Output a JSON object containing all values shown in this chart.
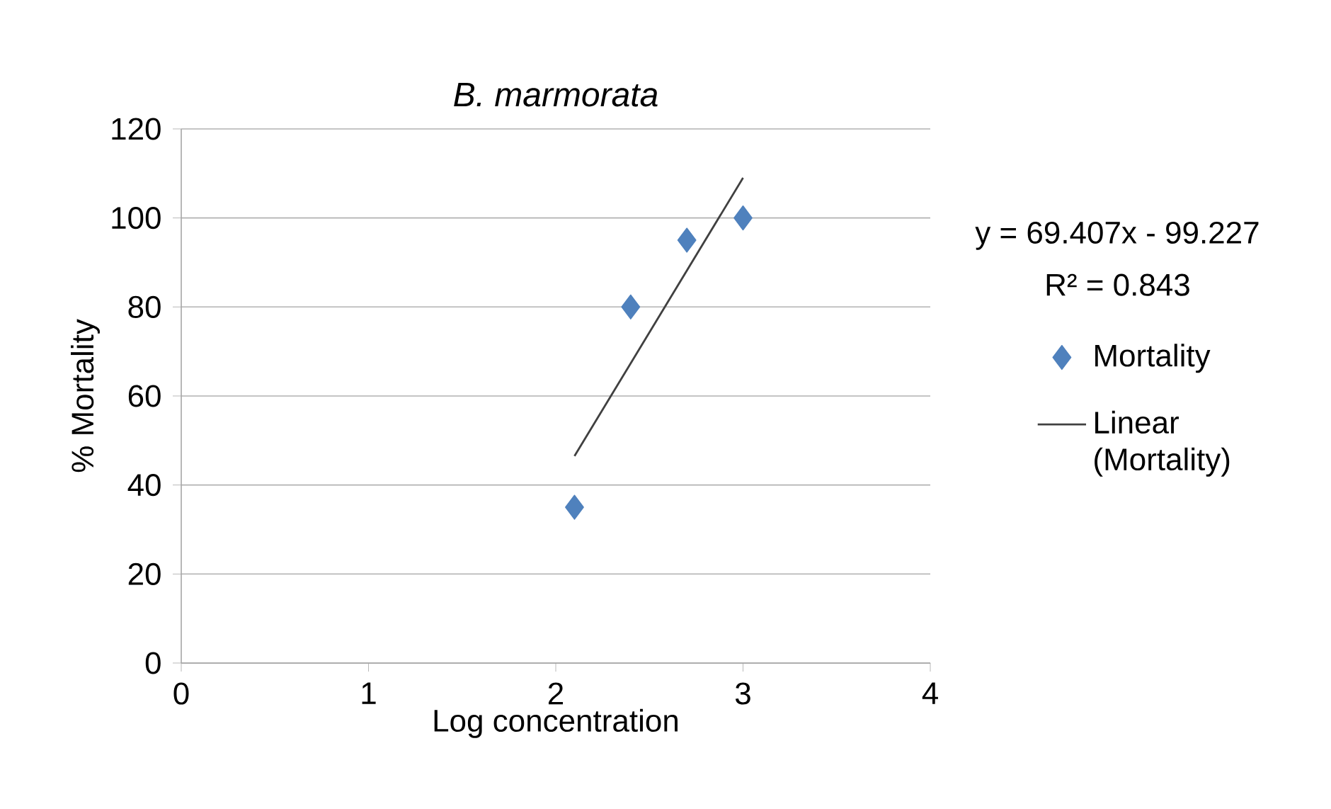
{
  "chart_data": {
    "type": "scatter",
    "title": "B. marmorata",
    "xlabel": "Log concentration",
    "ylabel": "% Mortality",
    "xlim": [
      0,
      4
    ],
    "xticks": [
      0,
      1,
      2,
      3,
      4
    ],
    "ylim": [
      0,
      120
    ],
    "yticks": [
      0,
      20,
      40,
      60,
      80,
      100,
      120
    ],
    "grid": "y",
    "legend": "right",
    "marker": "diamond",
    "annotations": [
      "y = 69.407x - 99.227",
      "R² = 0.843"
    ],
    "series": [
      {
        "name": "Mortality",
        "color": "#4f81bd",
        "x": [
          2.1,
          2.4,
          2.7,
          3.0
        ],
        "values": [
          35,
          80,
          95,
          100
        ]
      },
      {
        "name": "Linear (Mortality)",
        "type": "line",
        "marker": "none",
        "color": "#404040",
        "x": [
          2.1,
          3.0
        ],
        "values": [
          46.5,
          109.0
        ]
      }
    ]
  }
}
